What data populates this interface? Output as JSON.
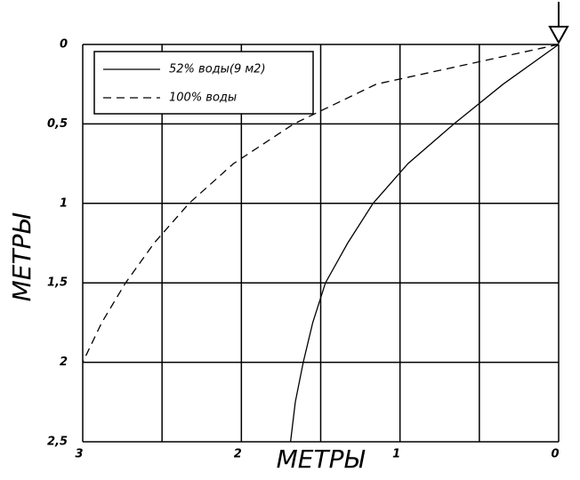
{
  "chart_data": {
    "type": "line",
    "x_label": "МЕТРЫ",
    "y_label": "МЕТРЫ",
    "xlim": [
      3,
      0
    ],
    "ylim": [
      0,
      2.5
    ],
    "xticks": [
      3,
      {
        "value": 2.5,
        "label": null
      },
      2,
      {
        "value": 1.5,
        "label": null
      },
      1,
      {
        "value": 0.5,
        "label": null
      },
      0
    ],
    "yticks": [
      0,
      {
        "value": 0.5,
        "label": "0,5"
      },
      1,
      {
        "value": 1.5,
        "label": "1,5"
      },
      2,
      {
        "value": 2.5,
        "label": "2,5"
      }
    ],
    "grid": true,
    "legend": "upper left",
    "series": [
      {
        "name": "52% воды(9 м2)",
        "color": "#000000",
        "dash": "solid",
        "x": [
          0,
          0.35,
          0.66,
          0.95,
          1.17,
          1.33,
          1.47,
          1.55,
          1.61,
          1.66,
          1.69
        ],
        "y": [
          0,
          0.25,
          0.5,
          0.75,
          1,
          1.25,
          1.5,
          1.75,
          2,
          2.25,
          2.5
        ]
      },
      {
        "name": "100% воды",
        "color": "#000000",
        "dash": "dashed",
        "x": [
          0,
          1.15,
          1.67,
          2.05,
          2.33,
          2.55,
          2.73,
          2.88,
          3
        ],
        "y": [
          0,
          0.25,
          0.5,
          0.75,
          1,
          1.25,
          1.5,
          1.75,
          2
        ]
      }
    ]
  }
}
